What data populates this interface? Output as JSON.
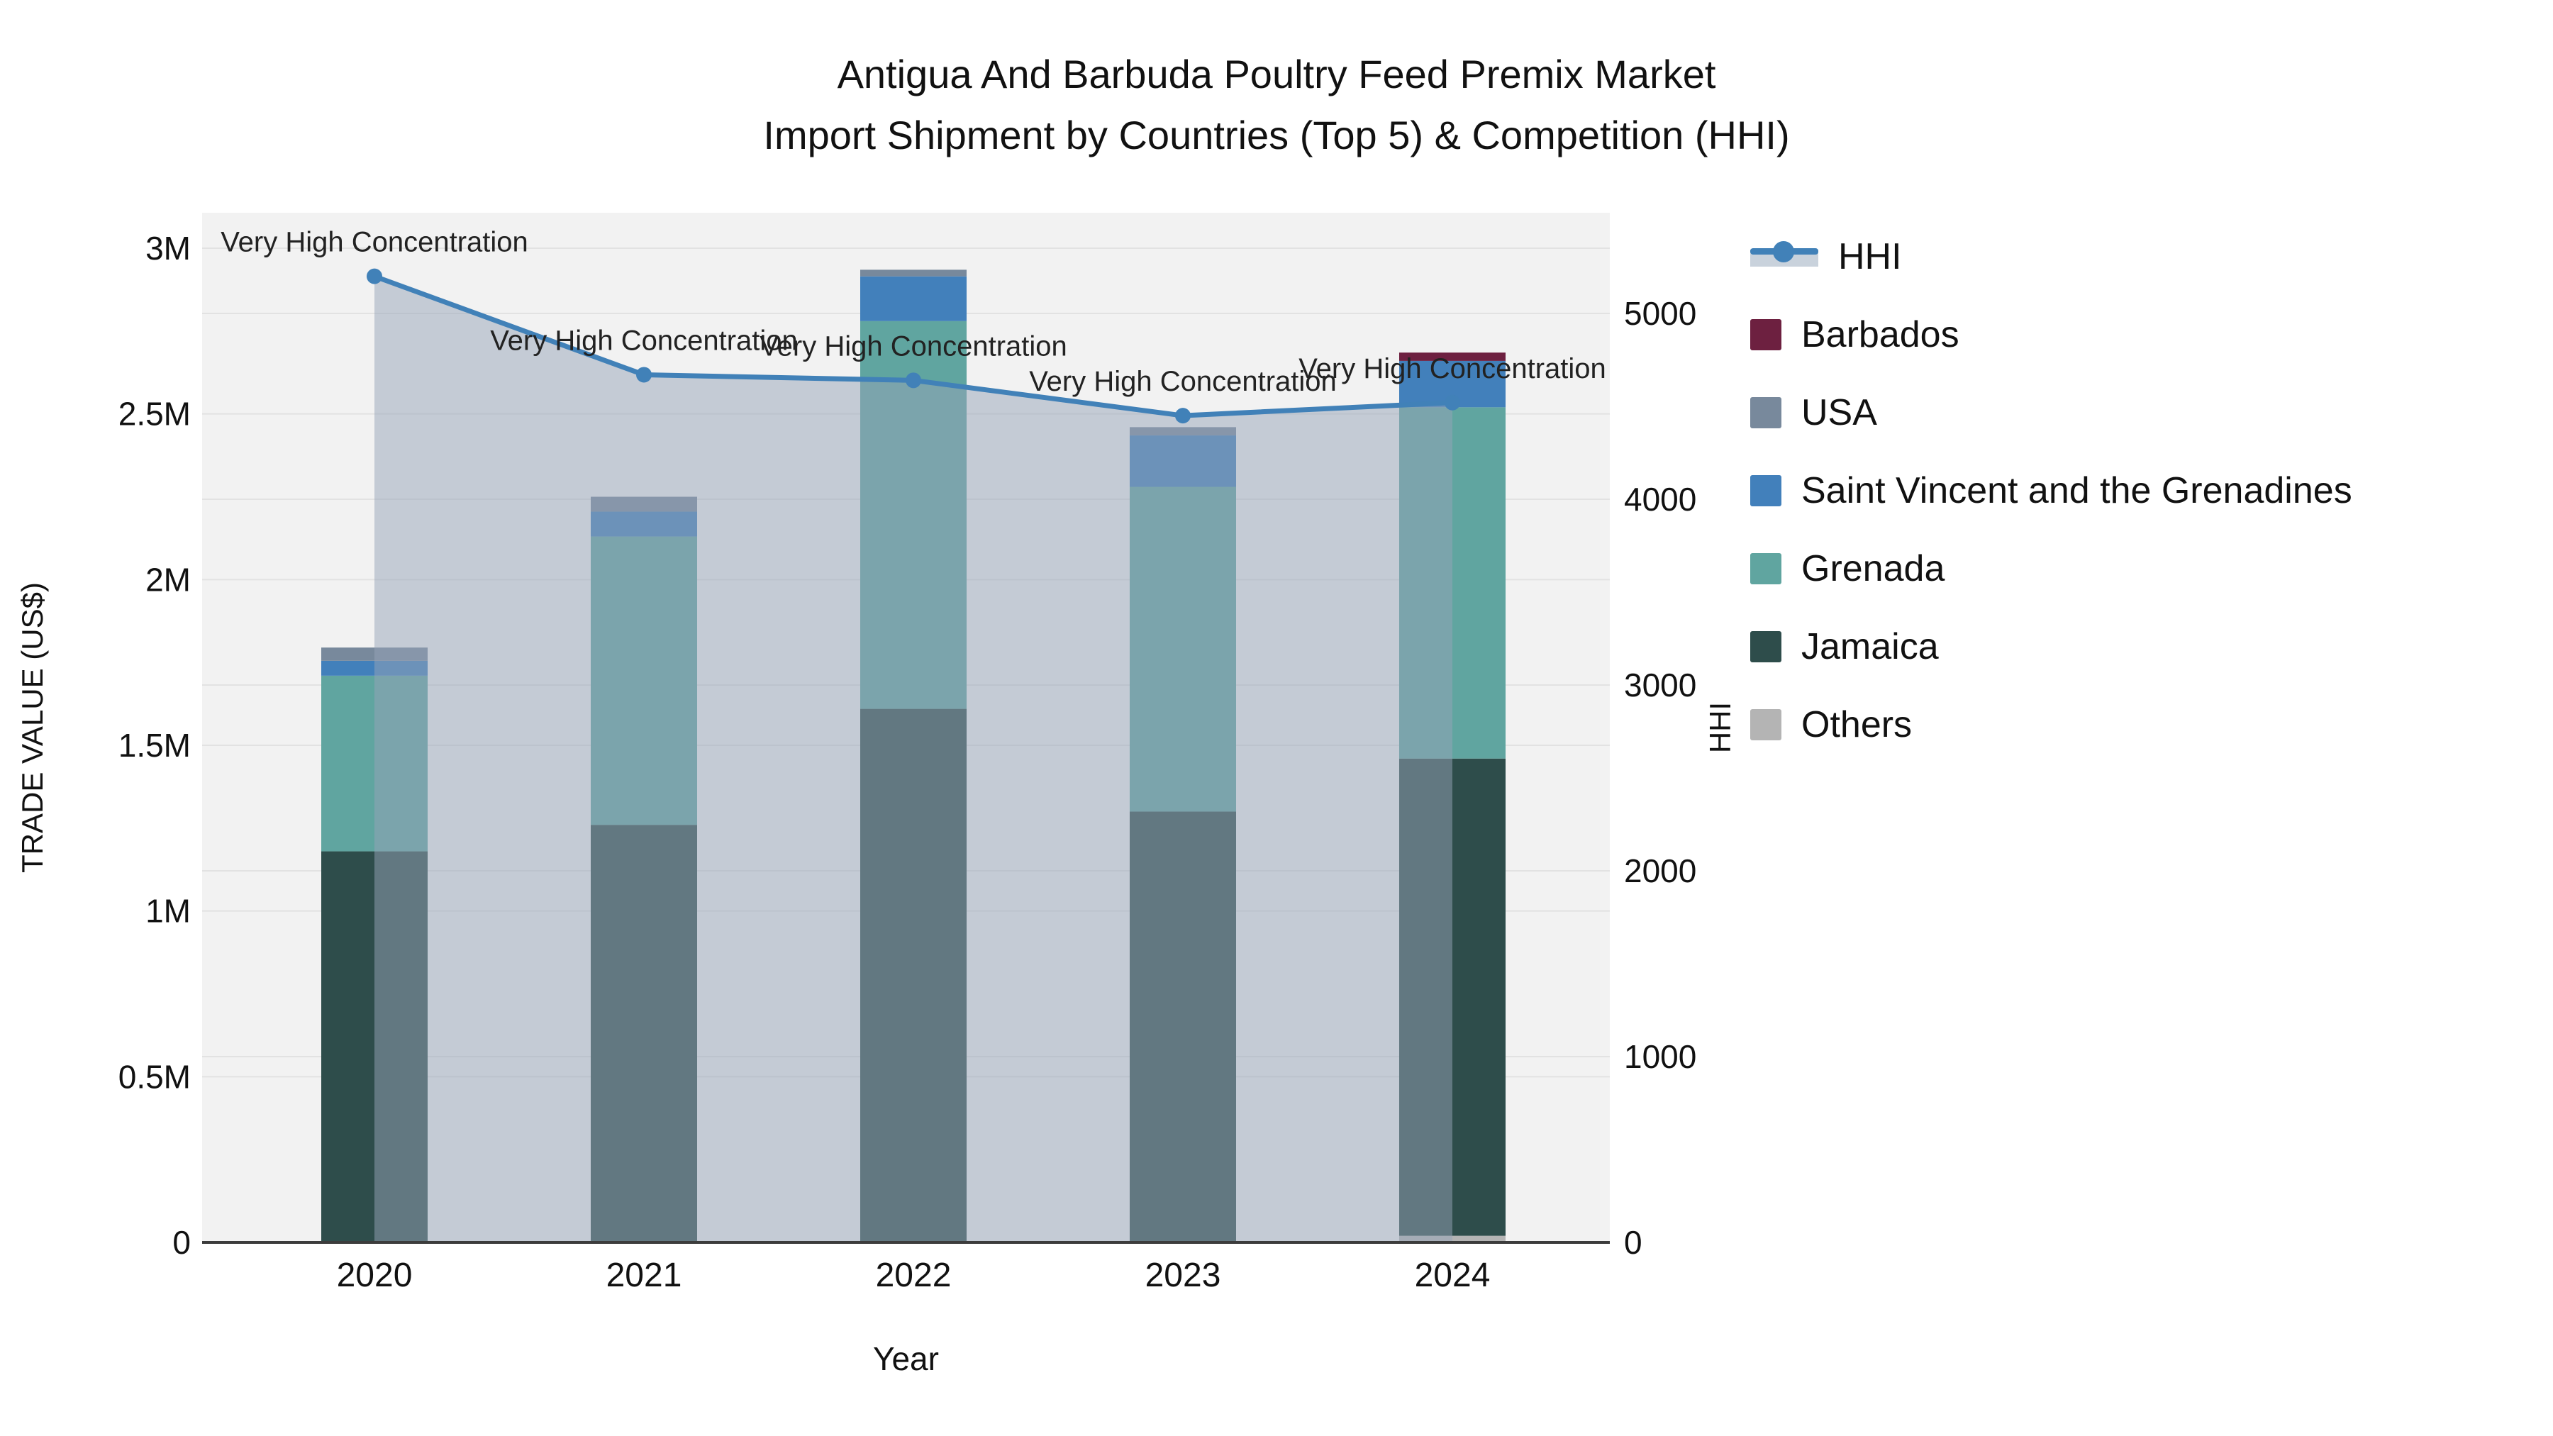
{
  "title": {
    "line1": "Antigua And Barbuda Poultry Feed Premix Market",
    "line2": "Import Shipment by Countries (Top 5) & Competition (HHI)"
  },
  "legend": {
    "items": [
      {
        "label": "HHI",
        "swatch": "hhi-line",
        "color": "#4181b8"
      },
      {
        "label": "Barbados",
        "swatch": "square",
        "color": "#6d2040"
      },
      {
        "label": "USA",
        "swatch": "square",
        "color": "#78899c"
      },
      {
        "label": "Saint Vincent and the Grenadines",
        "swatch": "square",
        "color": "#4280bb"
      },
      {
        "label": "Grenada",
        "swatch": "square",
        "color": "#60a5a0"
      },
      {
        "label": "Jamaica",
        "swatch": "square",
        "color": "#2e4d4b"
      },
      {
        "label": "Others",
        "swatch": "square",
        "color": "#b4b4b4"
      }
    ]
  },
  "chart_data": {
    "type": "bar",
    "subtype": "stacked-bars-with-line-overlay",
    "categories": [
      "2020",
      "2021",
      "2022",
      "2023",
      "2024"
    ],
    "xlabel": "Year",
    "ylabel_left": "TRADE VALUE (US$)",
    "ylabel_right": "HHI",
    "units_left": "million US$",
    "y_left_ticks": [
      "0",
      "0.5M",
      "1M",
      "1.5M",
      "2M",
      "2.5M",
      "3M"
    ],
    "y_left_tick_values": [
      0,
      0.5,
      1,
      1.5,
      2,
      2.5,
      3
    ],
    "y_left_range": [
      0,
      3.107
    ],
    "y_right_ticks": [
      "0",
      "1000",
      "2000",
      "3000",
      "4000",
      "5000"
    ],
    "y_right_tick_values": [
      0,
      1000,
      2000,
      3000,
      4000,
      5000
    ],
    "y_right_range": [
      0,
      5542
    ],
    "grid": "both-axes-horizontal",
    "legend_position": "right",
    "series": [
      {
        "name": "Others",
        "color": "#b4b4b4",
        "values": [
          0,
          0,
          0,
          0,
          0.02
        ]
      },
      {
        "name": "Jamaica",
        "color": "#2e4d4b",
        "values": [
          1.18,
          1.26,
          1.61,
          1.3,
          1.44
        ]
      },
      {
        "name": "Grenada",
        "color": "#60a5a0",
        "values": [
          0.53,
          0.87,
          1.17,
          0.98,
          1.06
        ]
      },
      {
        "name": "Saint Vincent and the Grenadines",
        "color": "#4280bb",
        "values": [
          0.045,
          0.075,
          0.135,
          0.155,
          0.14
        ]
      },
      {
        "name": "USA",
        "color": "#78899c",
        "values": [
          0.04,
          0.045,
          0.02,
          0.025,
          0
        ]
      },
      {
        "name": "Barbados",
        "color": "#6d2040",
        "values": [
          0,
          0,
          0,
          0,
          0.025
        ]
      }
    ],
    "bar_totals": [
      1.795,
      2.25,
      2.935,
      2.46,
      2.685
    ],
    "line_series": {
      "name": "HHI",
      "color": "#4181b8",
      "fill_color": "rgba(150,163,184,0.5)",
      "values": [
        5200,
        4670,
        4640,
        4450,
        4520
      ]
    },
    "annotations": [
      {
        "x": "2020",
        "text": "Very High Concentration"
      },
      {
        "x": "2021",
        "text": "Very High Concentration"
      },
      {
        "x": "2022",
        "text": "Very High Concentration"
      },
      {
        "x": "2023",
        "text": "Very High Concentration"
      },
      {
        "x": "2024",
        "text": "Very High Concentration"
      }
    ]
  },
  "colors": {
    "plot_background": "#f2f2f2",
    "gridline": "#e2e2e2",
    "axis_line": "#3c3c3c",
    "text": "#111111"
  }
}
